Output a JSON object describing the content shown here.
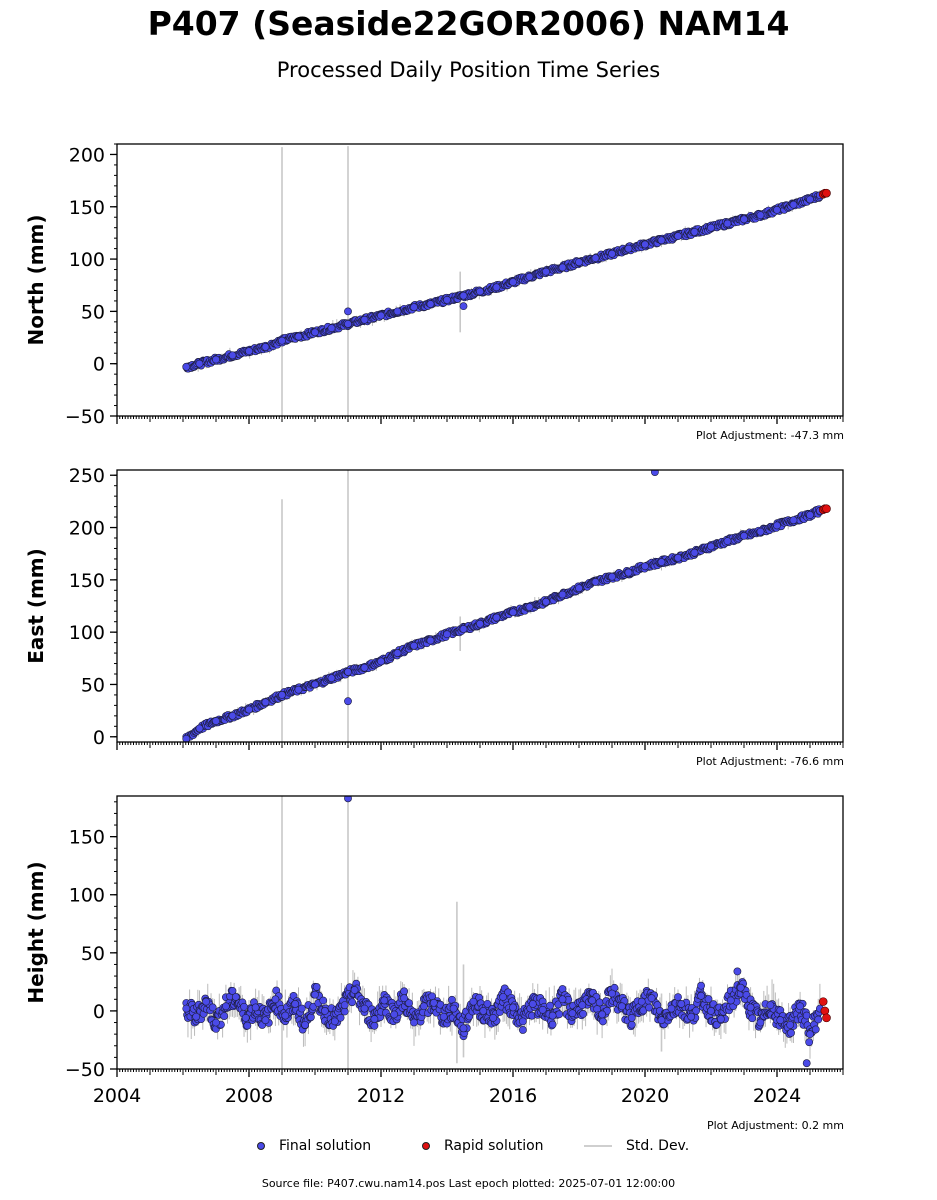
{
  "header": {
    "title": "P407 (Seaside22GOR2006) NAM14",
    "subtitle": "Processed Daily Position Time Series"
  },
  "legend": {
    "final_label": "Final solution",
    "rapid_label": "Rapid solution",
    "std_label": "Std. Dev."
  },
  "footer": {
    "source": "Source file: P407.cwu.nam14.pos  Last epoch plotted: 2025-07-01 12:00:00"
  },
  "colors": {
    "final": "#4a4ae8",
    "final_edge": "#1c1c3a",
    "rapid": "#e01010",
    "std": "#c8c8c8"
  },
  "chart_data": [
    {
      "type": "scatter",
      "ylabel": "North (mm)",
      "adjustment": "Plot Adjustment: -47.3 mm",
      "xlim": [
        2004,
        2026
      ],
      "ylim": [
        -50,
        210
      ],
      "yticks": [
        -50,
        0,
        50,
        100,
        150,
        200
      ],
      "xticks": [],
      "series": [
        {
          "x": [
            2006.1,
            2006.5,
            2007.0,
            2007.5,
            2008.0,
            2008.5,
            2009.0,
            2009.5,
            2010.0,
            2010.5,
            2011.0,
            2011.5,
            2012.0,
            2012.5,
            2013.0,
            2013.5,
            2014.0,
            2014.5,
            2015.0,
            2015.5,
            2016.0,
            2016.5,
            2017.0,
            2017.5,
            2018.0,
            2018.5,
            2019.0,
            2019.5,
            2020.0,
            2020.5,
            2021.0,
            2021.5,
            2022.0,
            2022.5,
            2023.0,
            2023.5,
            2024.0,
            2024.5,
            2025.0,
            2025.3
          ],
          "values": [
            -3,
            0,
            4,
            8,
            12,
            16,
            22,
            26,
            30,
            34,
            38,
            42,
            46,
            50,
            54,
            57,
            61,
            65,
            69,
            73,
            78,
            83,
            88,
            92,
            97,
            101,
            105,
            110,
            114,
            118,
            122,
            126,
            130,
            134,
            138,
            142,
            147,
            152,
            157,
            161
          ]
        },
        {
          "x": [
            2025.4,
            2025.45,
            2025.5
          ],
          "values": [
            162,
            163,
            163
          ]
        }
      ],
      "outliers": [
        {
          "x": 2011.0,
          "y": 50
        },
        {
          "x": 2014.5,
          "y": 55
        }
      ],
      "std_spikes": [
        {
          "x": 2009.0,
          "lo": -50,
          "hi": 207
        },
        {
          "x": 2011.0,
          "lo": -50,
          "hi": 208
        },
        {
          "x": 2014.4,
          "lo": 30,
          "hi": 88
        }
      ]
    },
    {
      "type": "scatter",
      "ylabel": "East (mm)",
      "adjustment": "Plot Adjustment: -76.6 mm",
      "xlim": [
        2004,
        2026
      ],
      "ylim": [
        -5,
        255
      ],
      "yticks": [
        0,
        50,
        100,
        150,
        200,
        250
      ],
      "xticks": [],
      "series": [
        {
          "x": [
            2006.1,
            2006.5,
            2007.0,
            2007.5,
            2008.0,
            2008.5,
            2009.0,
            2009.5,
            2010.0,
            2010.5,
            2011.0,
            2011.5,
            2012.0,
            2012.5,
            2013.0,
            2013.5,
            2014.0,
            2014.5,
            2015.0,
            2015.5,
            2016.0,
            2016.5,
            2017.0,
            2017.5,
            2018.0,
            2018.5,
            2019.0,
            2019.5,
            2020.0,
            2020.5,
            2021.0,
            2021.5,
            2022.0,
            2022.5,
            2023.0,
            2023.5,
            2024.0,
            2024.5,
            2025.0,
            2025.3
          ],
          "values": [
            -2,
            8,
            15,
            20,
            26,
            33,
            40,
            45,
            50,
            56,
            62,
            66,
            72,
            80,
            87,
            92,
            98,
            103,
            108,
            114,
            119,
            124,
            129,
            136,
            142,
            148,
            153,
            157,
            163,
            167,
            171,
            176,
            182,
            187,
            192,
            196,
            202,
            207,
            212,
            216
          ]
        },
        {
          "x": [
            2025.4,
            2025.45,
            2025.5
          ],
          "values": [
            217,
            218,
            218
          ]
        }
      ],
      "outliers": [
        {
          "x": 2011.0,
          "y": 34
        },
        {
          "x": 2020.3,
          "y": 253
        }
      ],
      "std_spikes": [
        {
          "x": 2009.0,
          "lo": -5,
          "hi": 227
        },
        {
          "x": 2011.0,
          "lo": -5,
          "hi": 255
        },
        {
          "x": 2014.4,
          "lo": 82,
          "hi": 115
        }
      ]
    },
    {
      "type": "scatter",
      "ylabel": "Height (mm)",
      "adjustment": "Plot Adjustment: 0.2 mm",
      "xlim": [
        2004,
        2026
      ],
      "ylim": [
        -50,
        185
      ],
      "yticks": [
        -50,
        0,
        50,
        100,
        150
      ],
      "xticks": [
        "2004",
        "2008",
        "2012",
        "2016",
        "2020",
        "2024"
      ],
      "series": [
        {
          "x": [
            2006.1,
            2006.4,
            2006.7,
            2007.0,
            2007.3,
            2007.6,
            2007.9,
            2008.2,
            2008.5,
            2008.8,
            2009.1,
            2009.4,
            2009.7,
            2010.0,
            2010.3,
            2010.6,
            2010.9,
            2011.2,
            2011.5,
            2011.8,
            2012.1,
            2012.4,
            2012.7,
            2013.0,
            2013.3,
            2013.6,
            2013.9,
            2014.2,
            2014.5,
            2014.8,
            2015.1,
            2015.4,
            2015.7,
            2016.0,
            2016.3,
            2016.6,
            2016.9,
            2017.2,
            2017.5,
            2017.8,
            2018.1,
            2018.4,
            2018.7,
            2019.0,
            2019.3,
            2019.6,
            2019.9,
            2020.2,
            2020.5,
            2020.8,
            2021.1,
            2021.4,
            2021.7,
            2022.0,
            2022.3,
            2022.6,
            2022.9,
            2023.2,
            2023.5,
            2023.8,
            2024.1,
            2024.4,
            2024.7,
            2025.0,
            2025.3
          ],
          "values": [
            2,
            -5,
            8,
            -10,
            4,
            12,
            -6,
            3,
            -8,
            10,
            -4,
            6,
            -12,
            14,
            0,
            -9,
            5,
            18,
            2,
            -7,
            9,
            -3,
            11,
            -10,
            4,
            7,
            -5,
            2,
            -15,
            8,
            0,
            -6,
            12,
            3,
            -9,
            6,
            1,
            -4,
            10,
            -2,
            5,
            9,
            -3,
            15,
            4,
            -6,
            8,
            11,
            -8,
            2,
            6,
            -5,
            13,
            0,
            -7,
            9,
            20,
            3,
            -10,
            5,
            -8,
            -12,
            4,
            -20,
            2
          ]
        },
        {
          "x": [
            2025.4,
            2025.45,
            2025.5
          ],
          "values": [
            8,
            0,
            -6
          ]
        }
      ],
      "outliers": [
        {
          "x": 2011.0,
          "y": 183
        },
        {
          "x": 2022.8,
          "y": 34
        },
        {
          "x": 2024.9,
          "y": -45
        }
      ],
      "std_spikes": [
        {
          "x": 2009.0,
          "lo": -50,
          "hi": 185
        },
        {
          "x": 2011.0,
          "lo": -50,
          "hi": 185
        },
        {
          "x": 2014.3,
          "lo": -45,
          "hi": 94
        },
        {
          "x": 2014.5,
          "lo": -40,
          "hi": 40
        },
        {
          "x": 2020.5,
          "lo": -35,
          "hi": 15
        }
      ]
    }
  ]
}
